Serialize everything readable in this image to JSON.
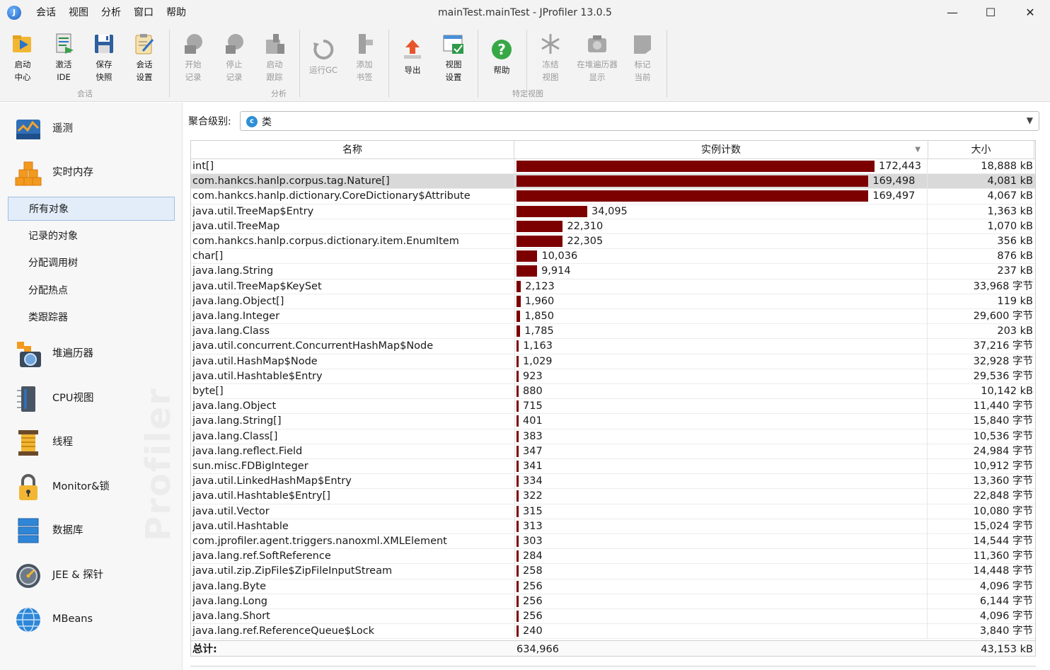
{
  "window": {
    "title": "mainTest.mainTest - JProfiler 13.0.5",
    "controls": {
      "minimize": "—",
      "maximize": "☐",
      "close": "✕"
    }
  },
  "menu": [
    "会话",
    "视图",
    "分析",
    "窗口",
    "帮助"
  ],
  "toolbar": {
    "buttons": [
      {
        "label": "启动\n中心",
        "icon": "launch-center-icon",
        "enabled": true
      },
      {
        "label": "激活\nIDE",
        "icon": "activate-ide-icon",
        "enabled": true
      },
      {
        "label": "保存\n快照",
        "icon": "save-snapshot-icon",
        "enabled": true
      },
      {
        "label": "会话\n设置",
        "icon": "session-settings-icon",
        "enabled": true
      },
      {
        "label": "开始\n记录",
        "icon": "start-recording-icon",
        "enabled": false
      },
      {
        "label": "停止\n记录",
        "icon": "stop-recording-icon",
        "enabled": false
      },
      {
        "label": "启动\n跟踪",
        "icon": "start-tracking-icon",
        "enabled": false
      },
      {
        "label": "运行GC",
        "icon": "run-gc-icon",
        "enabled": false
      },
      {
        "label": "添加\n书签",
        "icon": "add-bookmark-icon",
        "enabled": false
      },
      {
        "label": "导出",
        "icon": "export-icon",
        "enabled": true
      },
      {
        "label": "视图\n设置",
        "icon": "view-settings-icon",
        "enabled": true
      },
      {
        "label": "帮助",
        "icon": "help-icon",
        "enabled": true
      },
      {
        "label": "冻结\n视图",
        "icon": "freeze-view-icon",
        "enabled": false
      },
      {
        "label": "在堆遍历器\n显示",
        "icon": "show-in-heap-walker-icon",
        "enabled": false
      },
      {
        "label": "标记\n当前",
        "icon": "mark-current-icon",
        "enabled": false
      }
    ],
    "groups": [
      "会话",
      "分析",
      "特定视图"
    ]
  },
  "sidebar": {
    "sections": [
      {
        "label": "遥测",
        "icon": "telemetry-icon"
      },
      {
        "label": "实时内存",
        "icon": "live-memory-icon"
      },
      {
        "label": "堆遍历器",
        "icon": "heap-walker-icon"
      },
      {
        "label": "CPU视图",
        "icon": "cpu-views-icon"
      },
      {
        "label": "线程",
        "icon": "threads-icon"
      },
      {
        "label": "Monitor&锁",
        "icon": "monitor-lock-icon"
      },
      {
        "label": "数据库",
        "icon": "database-icon"
      },
      {
        "label": "JEE & 探针",
        "icon": "jee-probes-icon"
      },
      {
        "label": "MBeans",
        "icon": "mbeans-icon"
      }
    ],
    "memory_subitems": [
      "所有对象",
      "记录的对象",
      "分配调用树",
      "分配热点",
      "类跟踪器"
    ],
    "selected_subitem": "所有对象",
    "watermark": "Profiler"
  },
  "aggregation": {
    "label": "聚合级别:",
    "value": "类",
    "icon": "class-icon"
  },
  "table": {
    "columns": [
      "名称",
      "实例计数",
      "大小"
    ],
    "sort_column": "实例计数",
    "max_count": 172443,
    "rows": [
      {
        "name": "int[]",
        "count": 172443,
        "count_text": "172,443",
        "size": "18,888 kB"
      },
      {
        "name": "com.hankcs.hanlp.corpus.tag.Nature[]",
        "count": 169498,
        "count_text": "169,498",
        "size": "4,081 kB",
        "selected": true
      },
      {
        "name": "com.hankcs.hanlp.dictionary.CoreDictionary$Attribute",
        "count": 169497,
        "count_text": "169,497",
        "size": "4,067 kB"
      },
      {
        "name": "java.util.TreeMap$Entry",
        "count": 34095,
        "count_text": "34,095",
        "size": "1,363 kB"
      },
      {
        "name": "java.util.TreeMap",
        "count": 22310,
        "count_text": "22,310",
        "size": "1,070 kB"
      },
      {
        "name": "com.hankcs.hanlp.corpus.dictionary.item.EnumItem",
        "count": 22305,
        "count_text": "22,305",
        "size": "356 kB"
      },
      {
        "name": "char[]",
        "count": 10036,
        "count_text": "10,036",
        "size": "876 kB"
      },
      {
        "name": "java.lang.String",
        "count": 9914,
        "count_text": "9,914",
        "size": "237 kB"
      },
      {
        "name": "java.util.TreeMap$KeySet",
        "count": 2123,
        "count_text": "2,123",
        "size": "33,968 字节"
      },
      {
        "name": "java.lang.Object[]",
        "count": 1960,
        "count_text": "1,960",
        "size": "119 kB"
      },
      {
        "name": "java.lang.Integer",
        "count": 1850,
        "count_text": "1,850",
        "size": "29,600 字节"
      },
      {
        "name": "java.lang.Class",
        "count": 1785,
        "count_text": "1,785",
        "size": "203 kB"
      },
      {
        "name": "java.util.concurrent.ConcurrentHashMap$Node",
        "count": 1163,
        "count_text": "1,163",
        "size": "37,216 字节"
      },
      {
        "name": "java.util.HashMap$Node",
        "count": 1029,
        "count_text": "1,029",
        "size": "32,928 字节"
      },
      {
        "name": "java.util.Hashtable$Entry",
        "count": 923,
        "count_text": "923",
        "size": "29,536 字节"
      },
      {
        "name": "byte[]",
        "count": 880,
        "count_text": "880",
        "size": "10,142 kB"
      },
      {
        "name": "java.lang.Object",
        "count": 715,
        "count_text": "715",
        "size": "11,440 字节"
      },
      {
        "name": "java.lang.String[]",
        "count": 401,
        "count_text": "401",
        "size": "15,840 字节"
      },
      {
        "name": "java.lang.Class[]",
        "count": 383,
        "count_text": "383",
        "size": "10,536 字节"
      },
      {
        "name": "java.lang.reflect.Field",
        "count": 347,
        "count_text": "347",
        "size": "24,984 字节"
      },
      {
        "name": "sun.misc.FDBigInteger",
        "count": 341,
        "count_text": "341",
        "size": "10,912 字节"
      },
      {
        "name": "java.util.LinkedHashMap$Entry",
        "count": 334,
        "count_text": "334",
        "size": "13,360 字节"
      },
      {
        "name": "java.util.Hashtable$Entry[]",
        "count": 322,
        "count_text": "322",
        "size": "22,848 字节"
      },
      {
        "name": "java.util.Vector",
        "count": 315,
        "count_text": "315",
        "size": "10,080 字节"
      },
      {
        "name": "java.util.Hashtable",
        "count": 313,
        "count_text": "313",
        "size": "15,024 字节"
      },
      {
        "name": "com.jprofiler.agent.triggers.nanoxml.XMLElement",
        "count": 303,
        "count_text": "303",
        "size": "14,544 字节"
      },
      {
        "name": "java.lang.ref.SoftReference",
        "count": 284,
        "count_text": "284",
        "size": "11,360 字节"
      },
      {
        "name": "java.util.zip.ZipFile$ZipFileInputStream",
        "count": 258,
        "count_text": "258",
        "size": "14,448 字节"
      },
      {
        "name": "java.lang.Byte",
        "count": 256,
        "count_text": "256",
        "size": "4,096 字节"
      },
      {
        "name": "java.lang.Long",
        "count": 256,
        "count_text": "256",
        "size": "6,144 字节"
      },
      {
        "name": "java.lang.Short",
        "count": 256,
        "count_text": "256",
        "size": "4,096 字节"
      },
      {
        "name": "java.lang.ref.ReferenceQueue$Lock",
        "count": 240,
        "count_text": "240",
        "size": "3,840 字节"
      }
    ],
    "total": {
      "label": "总计:",
      "count": "634,966",
      "size": "43,153 kB"
    }
  },
  "colors": {
    "bar": "#7d0000",
    "selected_row": "#d9d9d9",
    "accent": "#2e8fd6"
  }
}
